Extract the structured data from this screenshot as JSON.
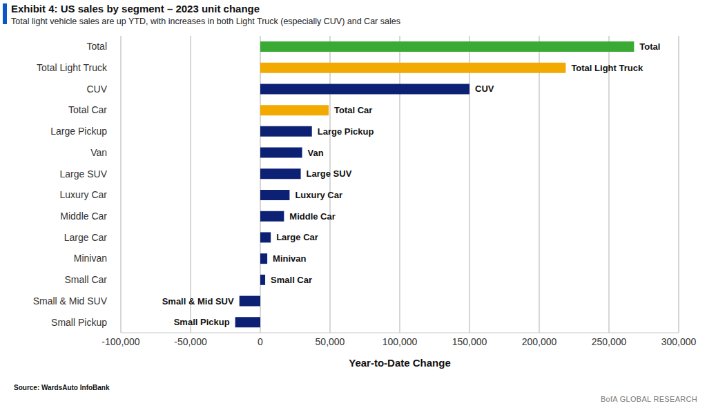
{
  "chart_data": {
    "type": "bar",
    "orientation": "horizontal",
    "title": "Exhibit 4: US sales by segment – 2023 unit change",
    "subtitle": "Total light vehicle sales are up YTD, with increases in both Light Truck (especially CUV) and Car sales",
    "x_label": "Year-to-Date Change",
    "source": "Source: WardsAuto InfoBank",
    "footer": "BofA GLOBAL RESEARCH",
    "categories": [
      "Total",
      "Total Light Truck",
      "CUV",
      "Total Car",
      "Large Pickup",
      "Van",
      "Large SUV",
      "Luxury Car",
      "Middle Car",
      "Large Car",
      "Minivan",
      "Small Car",
      "Small & Mid SUV",
      "Small Pickup"
    ],
    "values": [
      268000,
      219000,
      150000,
      49000,
      37000,
      30000,
      29000,
      21000,
      17000,
      7500,
      5000,
      3500,
      -15000,
      -18000
    ],
    "colors": [
      "#3aaa35",
      "#f2a900",
      "#0c2074",
      "#f2a900",
      "#0c2074",
      "#0c2074",
      "#0c2074",
      "#0c2074",
      "#0c2074",
      "#0c2074",
      "#0c2074",
      "#0c2074",
      "#0c2074",
      "#0c2074"
    ],
    "xlim": [
      -100000,
      300000
    ],
    "xticks": [
      {
        "value": -100000,
        "label": "-100,000"
      },
      {
        "value": -50000,
        "label": "-50,000"
      },
      0,
      {
        "value": 50000,
        "label": "50,000"
      },
      {
        "value": 100000,
        "label": "100,000"
      },
      {
        "value": 150000,
        "label": "150,000"
      },
      {
        "value": 200000,
        "label": "200,000"
      },
      {
        "value": 250000,
        "label": "250,000"
      },
      {
        "value": 300000,
        "label": "300,000"
      }
    ],
    "grid": true
  }
}
